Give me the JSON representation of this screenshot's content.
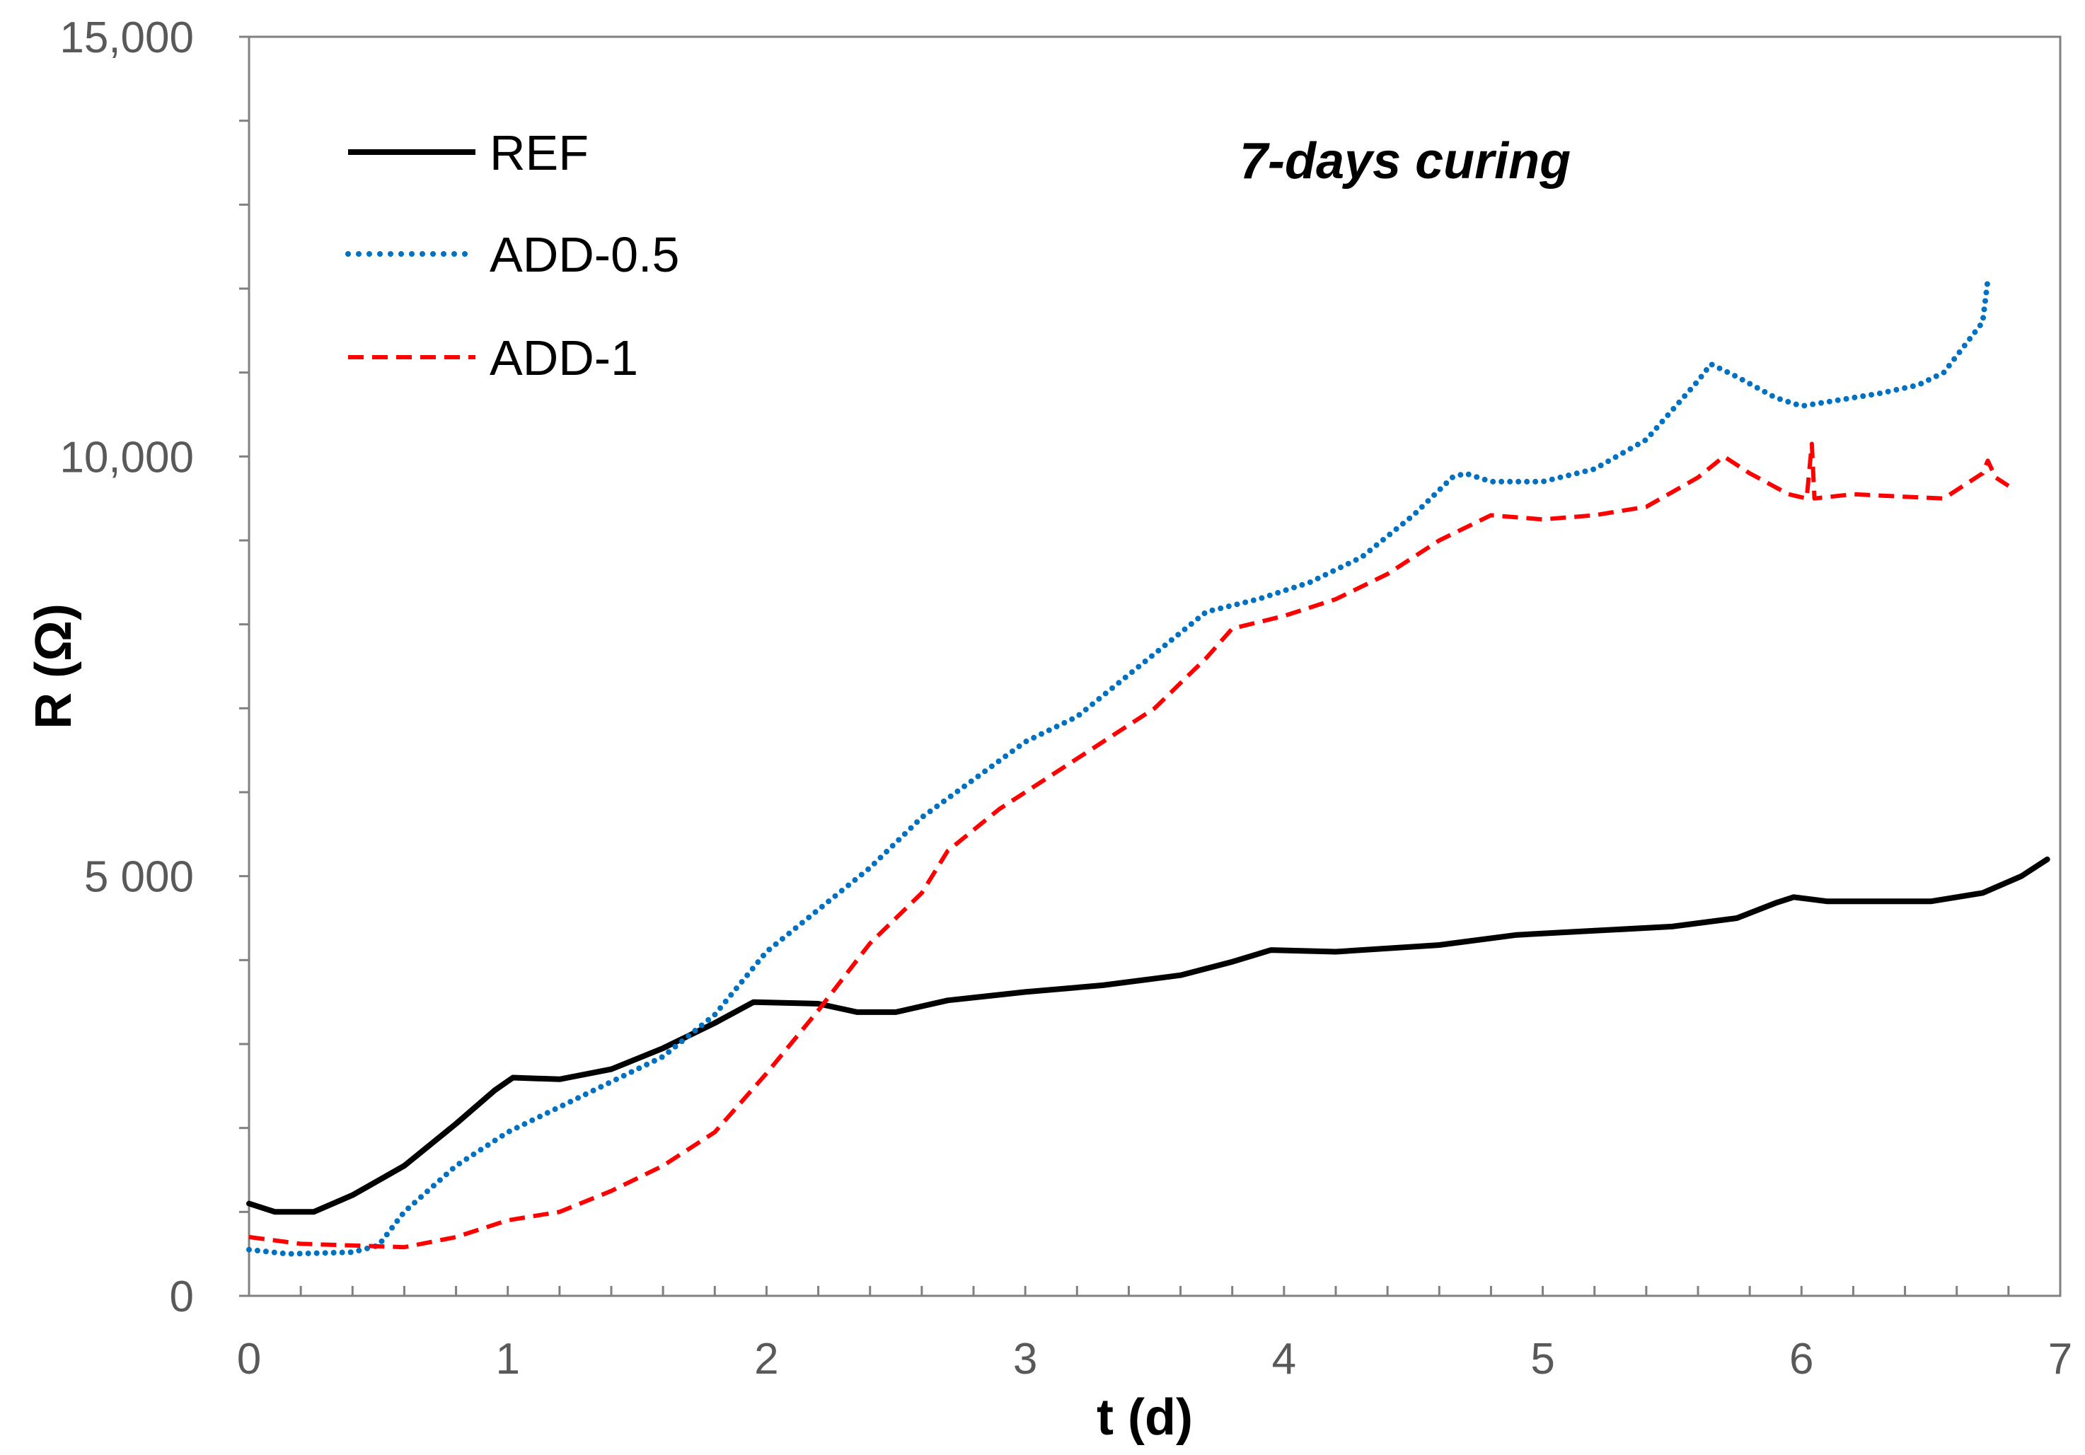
{
  "chart_data": {
    "type": "line",
    "title": "",
    "annotation": "7-days curing",
    "xlabel": "t (d)",
    "ylabel": "R (Ω)",
    "xlim": [
      0,
      7
    ],
    "ylim": [
      0,
      15000
    ],
    "x_ticks": [
      0,
      1,
      2,
      3,
      4,
      5,
      6,
      7
    ],
    "x_tick_labels": [
      "0",
      "1",
      "2",
      "3",
      "4",
      "5",
      "6",
      "7"
    ],
    "y_ticks": [
      0,
      5000,
      10000,
      15000
    ],
    "y_tick_labels": [
      "0",
      "5 000",
      "10,000",
      "15,000"
    ],
    "y_minor_step": 1000,
    "x_minor_step": 0.2,
    "grid": false,
    "legend_position": "top-left",
    "series": [
      {
        "name": "REF",
        "color": "#000000",
        "style": "solid",
        "points": [
          [
            0,
            1100
          ],
          [
            0.1,
            1000
          ],
          [
            0.25,
            1000
          ],
          [
            0.4,
            1200
          ],
          [
            0.6,
            1550
          ],
          [
            0.8,
            2050
          ],
          [
            0.95,
            2450
          ],
          [
            1.02,
            2600
          ],
          [
            1.2,
            2580
          ],
          [
            1.4,
            2700
          ],
          [
            1.6,
            2950
          ],
          [
            1.8,
            3250
          ],
          [
            1.95,
            3500
          ],
          [
            2.2,
            3480
          ],
          [
            2.35,
            3380
          ],
          [
            2.5,
            3380
          ],
          [
            2.7,
            3520
          ],
          [
            3.0,
            3620
          ],
          [
            3.3,
            3700
          ],
          [
            3.6,
            3820
          ],
          [
            3.8,
            3980
          ],
          [
            3.95,
            4120
          ],
          [
            4.2,
            4100
          ],
          [
            4.6,
            4180
          ],
          [
            4.9,
            4300
          ],
          [
            5.2,
            4350
          ],
          [
            5.5,
            4400
          ],
          [
            5.75,
            4500
          ],
          [
            5.9,
            4680
          ],
          [
            5.97,
            4750
          ],
          [
            6.1,
            4700
          ],
          [
            6.5,
            4700
          ],
          [
            6.7,
            4800
          ],
          [
            6.85,
            5000
          ],
          [
            6.95,
            5200
          ]
        ]
      },
      {
        "name": "ADD-0.5",
        "color": "#0070c0",
        "style": "dotted",
        "points": [
          [
            0,
            550
          ],
          [
            0.15,
            500
          ],
          [
            0.4,
            520
          ],
          [
            0.5,
            600
          ],
          [
            0.6,
            1000
          ],
          [
            0.8,
            1550
          ],
          [
            1.0,
            1950
          ],
          [
            1.2,
            2250
          ],
          [
            1.4,
            2550
          ],
          [
            1.6,
            2850
          ],
          [
            1.8,
            3350
          ],
          [
            2.0,
            4100
          ],
          [
            2.2,
            4600
          ],
          [
            2.4,
            5100
          ],
          [
            2.6,
            5700
          ],
          [
            2.8,
            6150
          ],
          [
            3.0,
            6600
          ],
          [
            3.2,
            6900
          ],
          [
            3.4,
            7400
          ],
          [
            3.6,
            7900
          ],
          [
            3.7,
            8150
          ],
          [
            3.9,
            8300
          ],
          [
            4.1,
            8500
          ],
          [
            4.3,
            8800
          ],
          [
            4.5,
            9300
          ],
          [
            4.65,
            9750
          ],
          [
            4.7,
            9800
          ],
          [
            4.8,
            9700
          ],
          [
            5.0,
            9700
          ],
          [
            5.2,
            9850
          ],
          [
            5.4,
            10200
          ],
          [
            5.6,
            10900
          ],
          [
            5.65,
            11100
          ],
          [
            5.75,
            10950
          ],
          [
            5.9,
            10700
          ],
          [
            6.0,
            10600
          ],
          [
            6.1,
            10650
          ],
          [
            6.3,
            10750
          ],
          [
            6.45,
            10850
          ],
          [
            6.55,
            11000
          ],
          [
            6.65,
            11400
          ],
          [
            6.7,
            11600
          ],
          [
            6.72,
            12100
          ]
        ]
      },
      {
        "name": "ADD-1",
        "color": "#ff0000",
        "style": "dashed",
        "points": [
          [
            0,
            700
          ],
          [
            0.2,
            620
          ],
          [
            0.4,
            600
          ],
          [
            0.6,
            580
          ],
          [
            0.8,
            700
          ],
          [
            1.0,
            900
          ],
          [
            1.2,
            1000
          ],
          [
            1.4,
            1250
          ],
          [
            1.6,
            1550
          ],
          [
            1.8,
            1950
          ],
          [
            2.0,
            2650
          ],
          [
            2.2,
            3400
          ],
          [
            2.4,
            4200
          ],
          [
            2.6,
            4800
          ],
          [
            2.7,
            5300
          ],
          [
            2.9,
            5800
          ],
          [
            3.1,
            6200
          ],
          [
            3.3,
            6600
          ],
          [
            3.5,
            7000
          ],
          [
            3.7,
            7600
          ],
          [
            3.8,
            7950
          ],
          [
            4.0,
            8100
          ],
          [
            4.2,
            8300
          ],
          [
            4.4,
            8600
          ],
          [
            4.6,
            9000
          ],
          [
            4.8,
            9300
          ],
          [
            5.0,
            9250
          ],
          [
            5.2,
            9300
          ],
          [
            5.4,
            9400
          ],
          [
            5.6,
            9750
          ],
          [
            5.7,
            10000
          ],
          [
            5.8,
            9800
          ],
          [
            5.95,
            9550
          ],
          [
            6.02,
            9500
          ],
          [
            6.04,
            10150
          ],
          [
            6.05,
            9500
          ],
          [
            6.2,
            9550
          ],
          [
            6.4,
            9520
          ],
          [
            6.55,
            9500
          ],
          [
            6.7,
            9800
          ],
          [
            6.72,
            9950
          ],
          [
            6.75,
            9750
          ],
          [
            6.8,
            9650
          ]
        ]
      }
    ]
  }
}
